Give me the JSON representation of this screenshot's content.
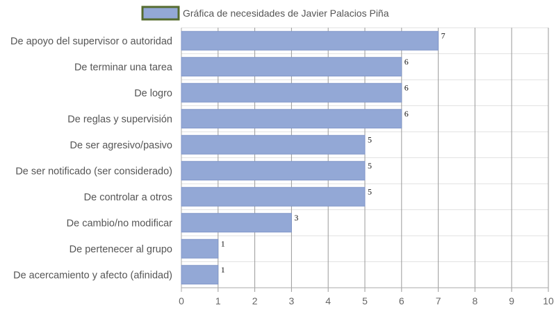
{
  "chart_data": {
    "type": "bar",
    "orientation": "horizontal",
    "categories": [
      "De apoyo del supervisor o autoridad",
      "De terminar una tarea",
      "De logro",
      "De reglas y supervisión",
      "De ser agresivo/pasivo",
      "De ser notificado (ser considerado)",
      "De controlar a otros",
      "De cambio/no modificar",
      "De pertenecer al grupo",
      "De acercamiento y afecto (afinidad)"
    ],
    "series": [
      {
        "name": "Gráfica de necesidades de Javier Palacios Piña",
        "values": [
          7,
          6,
          6,
          6,
          5,
          5,
          5,
          3,
          1,
          1
        ]
      }
    ],
    "xlim": [
      0,
      10
    ],
    "xticks": [
      "0",
      "1",
      "2",
      "3",
      "4",
      "5",
      "6",
      "7",
      "8",
      "9",
      "10"
    ],
    "grid": true,
    "legend_position": "top-center",
    "colors": {
      "bar_fill": "#93a8d6",
      "bar_stroke": "#8096c8",
      "legend_border": "#556b2f",
      "grid": "#999999"
    }
  }
}
